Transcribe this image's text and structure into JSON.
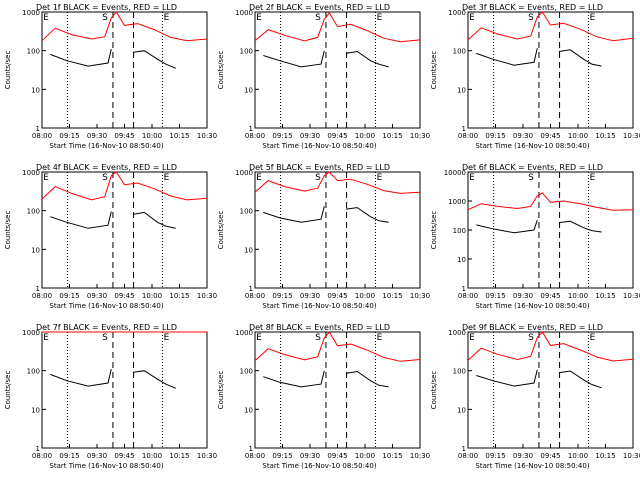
{
  "figure": {
    "xlabel": "Start Time (16-Nov-10 08:50:40)",
    "ylabel": "Counts/sec",
    "x_tick_labels": [
      "08:00",
      "09:15",
      "09:30",
      "09:45",
      "10:00",
      "10:15",
      "10:30"
    ],
    "markers": {
      "start": "S",
      "end": "E"
    },
    "colors": {
      "events": "#000000",
      "lld": "#ff0000"
    }
  },
  "chart_data": [
    {
      "type": "line",
      "title": "Det 1f BLACK = Events, RED = LLD",
      "ylim": [
        1,
        1000
      ],
      "y_ticks": [
        "1",
        "10",
        "100",
        "1000"
      ],
      "series": [
        {
          "name": "Events",
          "color": "#000000",
          "x": [
            0.05,
            0.15,
            0.28,
            0.4,
            0.42,
            0.48,
            0.55,
            0.62,
            0.7,
            0.75,
            0.81
          ],
          "y": [
            80,
            55,
            40,
            48,
            110,
            null,
            90,
            100,
            60,
            45,
            35
          ]
        },
        {
          "name": "LLD",
          "color": "#ff0000",
          "x": [
            0.0,
            0.08,
            0.18,
            0.3,
            0.38,
            0.42,
            0.45,
            0.5,
            0.58,
            0.68,
            0.78,
            0.88,
            1.0
          ],
          "y": [
            180,
            380,
            260,
            200,
            230,
            700,
            1000,
            450,
            500,
            350,
            220,
            180,
            200
          ]
        }
      ],
      "vlines": {
        "dotted": [
          0.155,
          0.73
        ],
        "dashed": [
          0.43,
          0.555
        ]
      }
    },
    {
      "type": "line",
      "title": "Det 2f BLACK = Events, RED = LLD",
      "ylim": [
        1,
        1000
      ],
      "y_ticks": [
        "1",
        "10",
        "100",
        "1000"
      ],
      "series": [
        {
          "name": "Events",
          "color": "#000000",
          "x": [
            0.05,
            0.15,
            0.28,
            0.4,
            0.42,
            0.48,
            0.55,
            0.62,
            0.7,
            0.75,
            0.81
          ],
          "y": [
            75,
            55,
            38,
            45,
            100,
            null,
            85,
            95,
            55,
            45,
            38
          ]
        },
        {
          "name": "LLD",
          "color": "#ff0000",
          "x": [
            0.0,
            0.08,
            0.18,
            0.3,
            0.38,
            0.42,
            0.45,
            0.5,
            0.58,
            0.68,
            0.78,
            0.88,
            1.0
          ],
          "y": [
            180,
            350,
            250,
            180,
            220,
            650,
            950,
            420,
            480,
            330,
            210,
            170,
            190
          ]
        }
      ],
      "vlines": {
        "dotted": [
          0.155,
          0.73
        ],
        "dashed": [
          0.43,
          0.555
        ]
      }
    },
    {
      "type": "line",
      "title": "Det 3f BLACK = Events, RED = LLD",
      "ylim": [
        1,
        1000
      ],
      "y_ticks": [
        "1",
        "10",
        "100",
        "1000"
      ],
      "series": [
        {
          "name": "Events",
          "color": "#000000",
          "x": [
            0.05,
            0.15,
            0.28,
            0.4,
            0.42,
            0.48,
            0.55,
            0.62,
            0.7,
            0.75,
            0.81
          ],
          "y": [
            85,
            60,
            42,
            50,
            115,
            null,
            95,
            105,
            60,
            45,
            40
          ]
        },
        {
          "name": "LLD",
          "color": "#ff0000",
          "x": [
            0.0,
            0.08,
            0.18,
            0.3,
            0.38,
            0.42,
            0.45,
            0.5,
            0.58,
            0.68,
            0.78,
            0.88,
            1.0
          ],
          "y": [
            190,
            390,
            270,
            200,
            240,
            750,
            1050,
            460,
            510,
            360,
            230,
            180,
            210
          ]
        }
      ],
      "vlines": {
        "dotted": [
          0.155,
          0.73
        ],
        "dashed": [
          0.43,
          0.555
        ]
      }
    },
    {
      "type": "line",
      "title": "Det 4f BLACK = Events, RED = LLD",
      "ylim": [
        1,
        1000
      ],
      "y_ticks": [
        "1",
        "10",
        "100",
        "1000"
      ],
      "series": [
        {
          "name": "Events",
          "color": "#000000",
          "x": [
            0.05,
            0.15,
            0.28,
            0.4,
            0.42,
            0.48,
            0.55,
            0.62,
            0.7,
            0.75,
            0.81
          ],
          "y": [
            70,
            50,
            35,
            42,
            95,
            null,
            80,
            90,
            50,
            40,
            35
          ]
        },
        {
          "name": "LLD",
          "color": "#ff0000",
          "x": [
            0.0,
            0.08,
            0.18,
            0.3,
            0.38,
            0.42,
            0.45,
            0.5,
            0.58,
            0.68,
            0.78,
            0.88,
            1.0
          ],
          "y": [
            200,
            420,
            280,
            190,
            230,
            800,
            1100,
            470,
            520,
            370,
            240,
            190,
            210
          ]
        }
      ],
      "vlines": {
        "dotted": [
          0.155,
          0.73
        ],
        "dashed": [
          0.43,
          0.555
        ]
      }
    },
    {
      "type": "line",
      "title": "Det 5f BLACK = Events, RED = LLD",
      "ylim": [
        1,
        1000
      ],
      "y_ticks": [
        "1",
        "10",
        "100",
        "1000"
      ],
      "series": [
        {
          "name": "Events",
          "color": "#000000",
          "x": [
            0.05,
            0.15,
            0.28,
            0.4,
            0.42,
            0.48,
            0.55,
            0.62,
            0.7,
            0.75,
            0.81
          ],
          "y": [
            90,
            65,
            50,
            60,
            130,
            null,
            110,
            120,
            70,
            55,
            50
          ]
        },
        {
          "name": "LLD",
          "color": "#ff0000",
          "x": [
            0.0,
            0.08,
            0.18,
            0.3,
            0.38,
            0.42,
            0.45,
            0.5,
            0.58,
            0.68,
            0.78,
            0.88,
            1.0
          ],
          "y": [
            300,
            600,
            420,
            320,
            380,
            800,
            1000,
            600,
            650,
            480,
            330,
            280,
            300
          ]
        }
      ],
      "vlines": {
        "dotted": [
          0.155,
          0.73
        ],
        "dashed": [
          0.43,
          0.555
        ]
      }
    },
    {
      "type": "line",
      "title": "Det 6f BLACK = Events, RED = LLD",
      "ylim": [
        1,
        10000
      ],
      "y_ticks": [
        "1",
        "10",
        "100",
        "1000",
        "10000"
      ],
      "series": [
        {
          "name": "Events",
          "color": "#000000",
          "x": [
            0.05,
            0.15,
            0.28,
            0.4,
            0.42,
            0.48,
            0.55,
            0.62,
            0.7,
            0.75,
            0.81
          ],
          "y": [
            150,
            110,
            80,
            100,
            220,
            null,
            180,
            200,
            120,
            95,
            85
          ]
        },
        {
          "name": "LLD",
          "color": "#ff0000",
          "x": [
            0.0,
            0.08,
            0.18,
            0.3,
            0.38,
            0.42,
            0.45,
            0.5,
            0.58,
            0.68,
            0.78,
            0.88,
            1.0
          ],
          "y": [
            500,
            800,
            650,
            550,
            650,
            1500,
            1900,
            900,
            1000,
            800,
            600,
            480,
            500
          ]
        }
      ],
      "vlines": {
        "dotted": [
          0.155,
          0.73
        ],
        "dashed": [
          0.43,
          0.555
        ]
      }
    },
    {
      "type": "line",
      "title": "Det 7f BLACK = Events, RED = LLD",
      "ylim": [
        1,
        1000
      ],
      "y_ticks": [
        "1",
        "10",
        "100",
        "1000"
      ],
      "series": [
        {
          "name": "Events",
          "color": "#000000",
          "x": [
            0.05,
            0.15,
            0.28,
            0.4,
            0.42,
            0.48,
            0.55,
            0.62,
            0.7,
            0.75,
            0.81
          ],
          "y": [
            80,
            55,
            40,
            48,
            110,
            null,
            90,
            100,
            60,
            45,
            35
          ]
        },
        {
          "name": "LLD",
          "color": "#ff0000",
          "x": [
            0.0,
            0.08,
            0.18,
            0.3,
            0.38,
            0.42,
            0.45,
            0.5,
            0.58,
            0.68,
            0.78,
            0.88,
            1.0
          ],
          "y": [
            1200,
            1400,
            1300,
            1250,
            1300,
            1400,
            1500,
            1300,
            1350,
            1300,
            1250,
            1200,
            1250
          ]
        }
      ],
      "vlines": {
        "dotted": [
          0.155,
          0.73
        ],
        "dashed": [
          0.43,
          0.555
        ]
      }
    },
    {
      "type": "line",
      "title": "Det 8f BLACK = Events, RED = LLD",
      "ylim": [
        1,
        1000
      ],
      "y_ticks": [
        "1",
        "10",
        "100",
        "1000"
      ],
      "series": [
        {
          "name": "Events",
          "color": "#000000",
          "x": [
            0.05,
            0.15,
            0.28,
            0.4,
            0.42,
            0.48,
            0.55,
            0.62,
            0.7,
            0.75,
            0.81
          ],
          "y": [
            70,
            50,
            38,
            45,
            100,
            null,
            85,
            95,
            55,
            42,
            38
          ]
        },
        {
          "name": "LLD",
          "color": "#ff0000",
          "x": [
            0.0,
            0.08,
            0.18,
            0.3,
            0.38,
            0.42,
            0.45,
            0.5,
            0.58,
            0.68,
            0.78,
            0.88,
            1.0
          ],
          "y": [
            180,
            370,
            260,
            190,
            230,
            700,
            1000,
            440,
            490,
            340,
            220,
            175,
            195
          ]
        }
      ],
      "vlines": {
        "dotted": [
          0.155,
          0.73
        ],
        "dashed": [
          0.43,
          0.555
        ]
      }
    },
    {
      "type": "line",
      "title": "Det 9f BLACK = Events, RED = LLD",
      "ylim": [
        1,
        1000
      ],
      "y_ticks": [
        "1",
        "10",
        "100",
        "1000"
      ],
      "series": [
        {
          "name": "Events",
          "color": "#000000",
          "x": [
            0.05,
            0.15,
            0.28,
            0.4,
            0.42,
            0.48,
            0.55,
            0.62,
            0.7,
            0.75,
            0.81
          ],
          "y": [
            75,
            55,
            40,
            48,
            105,
            null,
            88,
            98,
            58,
            44,
            36
          ]
        },
        {
          "name": "LLD",
          "color": "#ff0000",
          "x": [
            0.0,
            0.08,
            0.18,
            0.3,
            0.38,
            0.42,
            0.45,
            0.5,
            0.58,
            0.68,
            0.78,
            0.88,
            1.0
          ],
          "y": [
            185,
            380,
            265,
            195,
            235,
            720,
            1020,
            450,
            500,
            345,
            225,
            178,
            198
          ]
        }
      ],
      "vlines": {
        "dotted": [
          0.155,
          0.73
        ],
        "dashed": [
          0.43,
          0.555
        ]
      }
    }
  ]
}
